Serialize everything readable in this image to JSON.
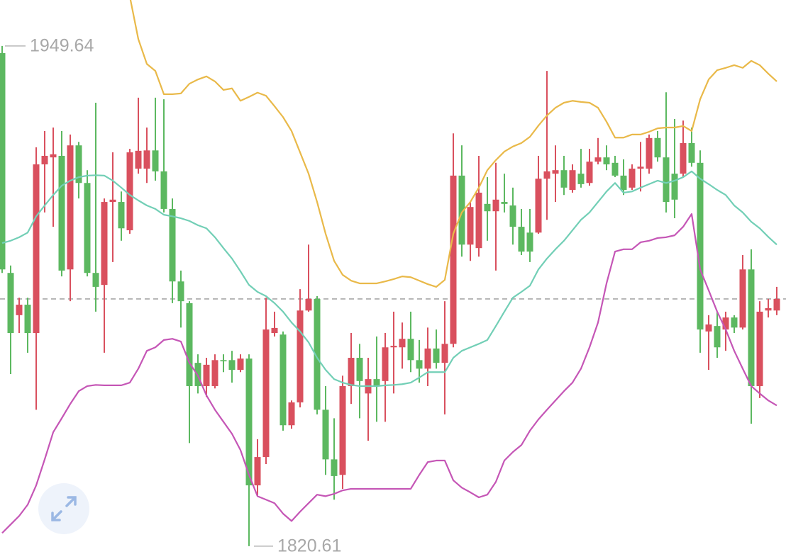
{
  "chart_data": {
    "type": "candlestick",
    "up_color": "#d9505e",
    "down_color": "#5cb860",
    "ylim": [
      1817.3,
      1961.5
    ],
    "high_label": 1949.64,
    "low_label": 1820.61,
    "reference_line": 1884.4,
    "open": [
      1947.8,
      1891.1,
      1880.2,
      1882.9,
      1875.6,
      1919.1,
      1920.9,
      1921.3,
      1892.0,
      1924.0,
      1914.3,
      1891.1,
      1888.0,
      1909.4,
      1909.4,
      1902.1,
      1918.0,
      1918.0,
      1922.7,
      1917.3,
      1907.6,
      1888.9,
      1883.3,
      1867.9,
      1861.9,
      1861.9,
      1868.6,
      1868.6,
      1866.1,
      1869.0,
      1836.3,
      1843.6,
      1875.6,
      1875.2,
      1851.8,
      1857.7,
      1881.4,
      1884.4,
      1855.8,
      1843.0,
      1839.0,
      1861.9,
      1869.2,
      1860.0,
      1863.7,
      1863.2,
      1871.9,
      1871.9,
      1874.1,
      1868.6,
      1866.4,
      1871.6,
      1867.9,
      1872.8,
      1916.2,
      1898.4,
      1897.5,
      1908.9,
      1907.0,
      1909.4,
      1908.5,
      1903.0,
      1901.5,
      1901.5,
      1915.4,
      1916.7,
      1917.6,
      1912.5,
      1916.7,
      1914.3,
      1919.8,
      1920.9,
      1919.5,
      1916.2,
      1913.1,
      1918.0,
      1918.0,
      1925.9,
      1920.9,
      1916.7,
      1916.7,
      1924.6,
      1919.5,
      1876.0,
      1877.4,
      1876.5,
      1879.6,
      1877.0,
      1892.0,
      1861.9,
      1881.4,
      1881.4
    ],
    "high": [
      1949.64,
      1893.0,
      1884.7,
      1884.7,
      1923.5,
      1927.7,
      1928.6,
      1927.7,
      1926.8,
      1924.9,
      1917.6,
      1935.0,
      1910.3,
      1922.2,
      1912.1,
      1923.1,
      1936.3,
      1928.6,
      1936.3,
      1935.9,
      1910.3,
      1891.7,
      1883.8,
      1870.1,
      1869.2,
      1870.1,
      1870.1,
      1871.0,
      1870.1,
      1870.1,
      1848.2,
      1884.7,
      1881.1,
      1876.0,
      1858.2,
      1886.9,
      1898.4,
      1885.1,
      1861.9,
      1853.6,
      1864.6,
      1875.6,
      1872.8,
      1869.2,
      1874.7,
      1875.6,
      1881.1,
      1878.3,
      1881.1,
      1873.8,
      1877.0,
      1876.5,
      1883.8,
      1927.1,
      1924.0,
      1909.4,
      1921.3,
      1915.8,
      1919.5,
      1916.7,
      1913.1,
      1907.6,
      1907.6,
      1921.3,
      1943.2,
      1924.0,
      1921.3,
      1919.1,
      1923.1,
      1923.1,
      1925.9,
      1924.0,
      1921.3,
      1920.4,
      1919.1,
      1924.9,
      1926.8,
      1927.7,
      1937.7,
      1930.8,
      1930.4,
      1928.6,
      1922.7,
      1880.2,
      1881.1,
      1881.1,
      1880.2,
      1895.7,
      1897.2,
      1883.8,
      1884.4,
      1887.5
    ],
    "low": [
      1891.1,
      1865.0,
      1875.6,
      1870.5,
      1855.8,
      1906.7,
      1903.0,
      1890.2,
      1883.8,
      1910.3,
      1890.2,
      1881.1,
      1870.5,
      1893.9,
      1899.4,
      1901.2,
      1916.7,
      1914.3,
      1914.9,
      1906.7,
      1883.3,
      1877.0,
      1847.2,
      1860.0,
      1859.1,
      1861.3,
      1865.5,
      1862.8,
      1865.5,
      1820.61,
      1833.5,
      1841.8,
      1874.7,
      1850.4,
      1850.9,
      1856.4,
      1881.1,
      1854.6,
      1839.0,
      1832.6,
      1835.4,
      1857.3,
      1853.6,
      1847.8,
      1852.7,
      1852.7,
      1860.0,
      1866.4,
      1865.5,
      1862.8,
      1861.9,
      1866.4,
      1854.6,
      1871.9,
      1895.3,
      1894.2,
      1895.3,
      1899.4,
      1891.7,
      1906.7,
      1898.4,
      1895.7,
      1893.9,
      1901.2,
      1904.8,
      1909.4,
      1911.2,
      1911.8,
      1913.1,
      1913.6,
      1919.1,
      1917.6,
      1915.8,
      1911.2,
      1912.5,
      1912.1,
      1916.7,
      1919.8,
      1906.7,
      1905.2,
      1915.8,
      1918.5,
      1870.5,
      1866.1,
      1869.2,
      1871.0,
      1875.6,
      1876.5,
      1852.2,
      1858.8,
      1879.6,
      1880.2
    ],
    "close": [
      1892.0,
      1875.6,
      1882.9,
      1875.6,
      1919.1,
      1921.3,
      1921.7,
      1891.7,
      1924.0,
      1914.3,
      1891.1,
      1887.5,
      1909.4,
      1910.0,
      1902.6,
      1922.2,
      1922.6,
      1922.7,
      1917.3,
      1907.6,
      1888.9,
      1883.8,
      1861.9,
      1861.9,
      1867.4,
      1868.6,
      1868.3,
      1866.1,
      1869.0,
      1836.3,
      1843.6,
      1876.5,
      1876.9,
      1851.8,
      1857.7,
      1881.4,
      1884.4,
      1855.8,
      1843.0,
      1838.7,
      1861.9,
      1869.2,
      1863.2,
      1863.7,
      1861.9,
      1871.9,
      1872.3,
      1874.1,
      1868.6,
      1866.4,
      1871.6,
      1867.9,
      1872.8,
      1916.2,
      1898.4,
      1908.1,
      1911.8,
      1907.0,
      1910.0,
      1908.9,
      1903.0,
      1896.6,
      1896.6,
      1915.4,
      1917.3,
      1917.6,
      1913.1,
      1917.6,
      1914.0,
      1919.8,
      1920.9,
      1919.1,
      1916.2,
      1912.5,
      1918.0,
      1918.5,
      1925.9,
      1920.9,
      1909.4,
      1910.0,
      1924.6,
      1919.5,
      1876.5,
      1877.8,
      1871.9,
      1879.6,
      1877.0,
      1892.0,
      1861.9,
      1881.1,
      1882.0,
      1884.4
    ],
    "upper_band": {
      "color": "#e9b949",
      "values": [
        null,
        null,
        null,
        null,
        null,
        null,
        null,
        null,
        null,
        null,
        null,
        null,
        null,
        null,
        null,
        1962.4,
        1951.4,
        1945.0,
        1943.2,
        1937.2,
        1937.2,
        1937.4,
        1939.9,
        1941.0,
        1941.8,
        1940.5,
        1938.3,
        1938.7,
        1935.5,
        1936.5,
        1937.6,
        1936.8,
        1934.1,
        1931.3,
        1927.7,
        1922.2,
        1916.7,
        1909.4,
        1901.2,
        1894.2,
        1890.6,
        1889.1,
        1888.4,
        1888.4,
        1888.4,
        1888.9,
        1889.5,
        1890.2,
        1890.0,
        1889.1,
        1888.2,
        1887.5,
        1889.3,
        1901.2,
        1906.7,
        1909.4,
        1913.1,
        1917.6,
        1920.2,
        1922.4,
        1923.7,
        1924.6,
        1926.2,
        1929.1,
        1931.7,
        1933.7,
        1935.0,
        1935.5,
        1935.2,
        1935.0,
        1933.7,
        1930.1,
        1926.0,
        1926.0,
        1926.8,
        1926.8,
        1927.5,
        1928.4,
        1928.6,
        1928.6,
        1929.0,
        1927.7,
        1935.9,
        1941.0,
        1943.4,
        1944.0,
        1944.7,
        1944.0,
        1945.8,
        1944.7,
        1942.5,
        1940.5
      ]
    },
    "middle_band": {
      "color": "#72cfb6",
      "values": [
        1898.8,
        1899.4,
        1900.3,
        1901.5,
        1905.7,
        1908.5,
        1911.2,
        1913.6,
        1914.9,
        1915.8,
        1916.2,
        1916.3,
        1916.2,
        1914.9,
        1913.1,
        1911.2,
        1909.8,
        1908.5,
        1907.6,
        1906.1,
        1905.7,
        1905.2,
        1904.5,
        1903.4,
        1902.6,
        1900.3,
        1897.5,
        1894.8,
        1891.5,
        1888.0,
        1886.2,
        1885.1,
        1883.3,
        1881.1,
        1878.3,
        1876.0,
        1873.2,
        1869.2,
        1866.1,
        1863.7,
        1862.8,
        1862.2,
        1861.9,
        1861.9,
        1861.9,
        1862.1,
        1862.2,
        1862.4,
        1862.8,
        1864.1,
        1865.5,
        1865.5,
        1865.5,
        1869.2,
        1871.0,
        1871.9,
        1872.8,
        1873.8,
        1877.4,
        1881.1,
        1884.7,
        1886.2,
        1887.8,
        1892.0,
        1894.8,
        1897.2,
        1899.4,
        1902.1,
        1904.8,
        1906.7,
        1909.4,
        1912.1,
        1914.3,
        1911.8,
        1912.1,
        1913.1,
        1914.0,
        1914.9,
        1914.3,
        1914.9,
        1915.8,
        1917.3,
        1915.4,
        1914.0,
        1912.5,
        1911.2,
        1908.5,
        1906.7,
        1904.3,
        1902.6,
        1900.4,
        1898.4
      ]
    },
    "lower_band": {
      "color": "#c556b6",
      "values": [
        1824.0,
        1826.2,
        1828.4,
        1831.3,
        1836.3,
        1843.0,
        1850.0,
        1853.6,
        1857.3,
        1860.6,
        1861.9,
        1862.2,
        1862.1,
        1862.1,
        1862.1,
        1862.8,
        1866.4,
        1871.0,
        1871.9,
        1873.8,
        1874.1,
        1873.4,
        1867.9,
        1864.6,
        1859.5,
        1855.8,
        1852.7,
        1849.6,
        1845.4,
        1839.0,
        1833.5,
        1832.6,
        1831.7,
        1829.0,
        1827.1,
        1829.5,
        1831.7,
        1833.9,
        1833.5,
        1834.1,
        1835.0,
        1835.4,
        1835.4,
        1835.4,
        1835.4,
        1835.4,
        1835.4,
        1835.4,
        1835.4,
        1839.0,
        1842.3,
        1842.7,
        1842.7,
        1837.6,
        1835.7,
        1834.5,
        1833.2,
        1833.9,
        1837.2,
        1842.7,
        1844.9,
        1846.7,
        1850.4,
        1853.3,
        1855.8,
        1858.2,
        1860.6,
        1862.8,
        1866.4,
        1871.9,
        1878.3,
        1888.4,
        1896.6,
        1897.2,
        1897.2,
        1899.0,
        1899.4,
        1900.1,
        1900.3,
        1900.8,
        1903.0,
        1906.3,
        1892.0,
        1886.6,
        1881.1,
        1876.5,
        1871.0,
        1866.4,
        1861.9,
        1860.0,
        1858.2,
        1856.9
      ]
    }
  }
}
